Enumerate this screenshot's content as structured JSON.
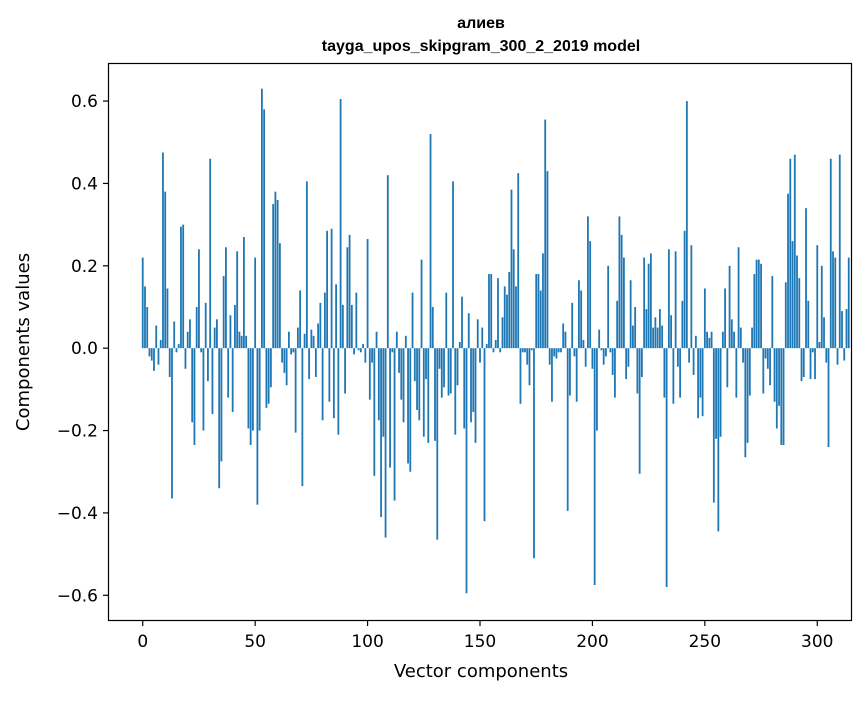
{
  "chart_data": {
    "type": "bar",
    "title_lines": [
      "алиев",
      "tayga_upos_skipgram_300_2_2019 model"
    ],
    "xlabel": "Vector components",
    "ylabel": "Components values",
    "xlim": [
      -15,
      315
    ],
    "ylim": [
      -0.66,
      0.69
    ],
    "xticks": [
      0,
      50,
      100,
      150,
      200,
      250,
      300
    ],
    "xtick_labels": [
      "0",
      "50",
      "100",
      "150",
      "200",
      "250",
      "300"
    ],
    "yticks": [
      -0.6,
      -0.4,
      -0.2,
      0.0,
      0.2,
      0.4,
      0.6
    ],
    "ytick_labels": [
      "−0.6",
      "−0.4",
      "−0.2",
      "0.0",
      "0.2",
      "0.4",
      "0.6"
    ],
    "grid": false,
    "bar_color": "#1f77b4",
    "values": [
      0.22,
      0.15,
      0.1,
      -0.02,
      -0.03,
      -0.055,
      0.055,
      -0.04,
      0.02,
      0.475,
      0.38,
      0.145,
      -0.07,
      -0.365,
      0.065,
      -0.01,
      0.01,
      0.295,
      0.3,
      -0.05,
      0.04,
      0.07,
      -0.18,
      -0.235,
      0.1,
      0.24,
      -0.01,
      -0.2,
      0.11,
      -0.08,
      0.46,
      -0.16,
      0.05,
      0.07,
      -0.34,
      -0.275,
      0.175,
      0.245,
      -0.12,
      0.08,
      -0.155,
      0.105,
      0.235,
      0.04,
      0.03,
      0.27,
      0.03,
      -0.195,
      -0.235,
      -0.2,
      0.22,
      -0.38,
      -0.2,
      0.63,
      0.58,
      -0.145,
      -0.135,
      -0.095,
      0.35,
      0.38,
      0.36,
      0.255,
      -0.035,
      -0.06,
      -0.09,
      0.04,
      -0.015,
      -0.01,
      -0.205,
      0.05,
      0.14,
      -0.335,
      0.035,
      0.405,
      -0.075,
      0.045,
      0.03,
      -0.07,
      0.06,
      0.11,
      -0.175,
      0.135,
      0.285,
      -0.13,
      0.29,
      -0.17,
      0.155,
      -0.21,
      0.605,
      0.105,
      -0.11,
      0.245,
      0.275,
      0.105,
      -0.015,
      0.135,
      -0.005,
      -0.01,
      0.01,
      -0.035,
      0.265,
      -0.125,
      -0.035,
      -0.31,
      0.04,
      -0.175,
      -0.41,
      -0.215,
      -0.46,
      0.42,
      -0.29,
      -0.01,
      -0.37,
      0.04,
      -0.06,
      -0.125,
      -0.18,
      0.03,
      -0.28,
      -0.3,
      0.135,
      -0.08,
      -0.15,
      -0.175,
      0.215,
      -0.215,
      -0.075,
      -0.23,
      0.52,
      0.1,
      -0.225,
      -0.465,
      -0.05,
      -0.12,
      -0.095,
      0.135,
      -0.115,
      -0.11,
      0.405,
      -0.21,
      -0.09,
      0.015,
      0.125,
      -0.195,
      -0.595,
      0.085,
      -0.18,
      -0.155,
      -0.23,
      0.07,
      -0.035,
      0.05,
      -0.42,
      0.01,
      0.18,
      0.18,
      -0.01,
      0.02,
      0.17,
      -0.01,
      0.075,
      0.15,
      0.13,
      0.185,
      0.385,
      0.24,
      0.15,
      0.425,
      -0.135,
      -0.01,
      -0.01,
      -0.04,
      -0.09,
      -0.005,
      -0.51,
      0.18,
      0.18,
      0.14,
      0.23,
      0.555,
      0.43,
      -0.04,
      -0.13,
      -0.02,
      -0.025,
      -0.01,
      -0.01,
      0.06,
      0.04,
      -0.395,
      -0.115,
      0.11,
      -0.02,
      -0.13,
      0.165,
      0.14,
      0.02,
      -0.045,
      0.32,
      0.26,
      -0.05,
      -0.575,
      -0.2,
      0.045,
      -0.005,
      -0.04,
      -0.02,
      0.2,
      -0.01,
      -0.065,
      -0.12,
      0.115,
      0.32,
      0.275,
      0.22,
      -0.075,
      -0.045,
      0.165,
      0.055,
      0.1,
      -0.11,
      -0.305,
      -0.07,
      0.22,
      0.095,
      0.205,
      0.23,
      0.05,
      0.075,
      0.05,
      0.095,
      0.055,
      -0.12,
      -0.58,
      0.24,
      0.08,
      -0.135,
      0.235,
      -0.045,
      -0.12,
      0.115,
      0.285,
      0.6,
      -0.035,
      0.25,
      -0.065,
      0.03,
      -0.17,
      -0.12,
      -0.165,
      0.145,
      0.04,
      0.025,
      0.04,
      -0.375,
      -0.22,
      -0.445,
      -0.215,
      0.04,
      0.145,
      -0.095,
      0.2,
      0.07,
      0.04,
      -0.12,
      0.245,
      0.05,
      -0.035,
      -0.265,
      -0.23,
      -0.115,
      0.05,
      0.18,
      0.215,
      0.215,
      0.205,
      -0.11,
      -0.025,
      -0.05,
      -0.09,
      0.175,
      -0.13,
      -0.195,
      -0.14,
      -0.235,
      -0.235,
      0.16,
      0.375,
      0.46,
      0.26,
      0.47,
      0.225,
      0.17,
      -0.08,
      -0.07,
      0.34,
      0.115,
      -0.075,
      -0.01,
      -0.075,
      0.25,
      0.015,
      0.2,
      0.075,
      -0.035,
      -0.24,
      0.46,
      0.235,
      0.22,
      -0.04,
      0.47,
      0.09,
      -0.03,
      0.095,
      0.22
    ]
  }
}
